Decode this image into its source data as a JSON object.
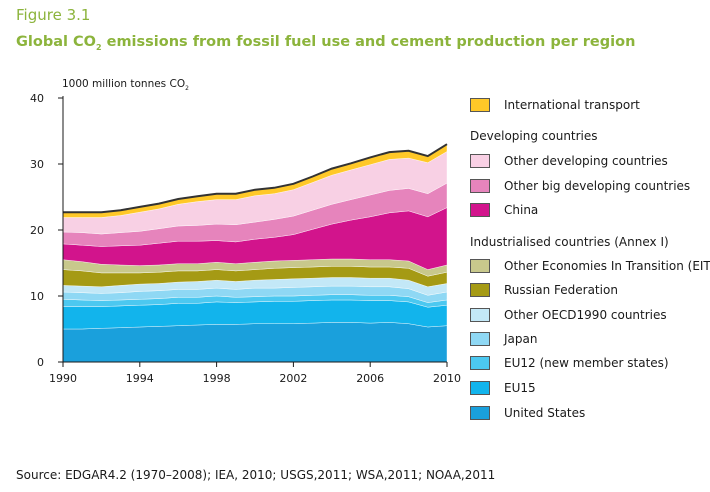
{
  "figure_label": "Figure 3.1",
  "title_pre": "Global CO",
  "title_sub": "2",
  "title_post": " emissions from fossil fuel use and cement production per region",
  "source": "Source: EDGAR4.2 (1970–2008); IEA, 2010; USGS,2011; WSA,2011; NOAA,2011",
  "chart_data": {
    "type": "area",
    "stacked": true,
    "ylabel_pre": "1000 million tonnes CO",
    "ylabel_sub": "2",
    "ylim": [
      0,
      40
    ],
    "yticks": [
      0,
      10,
      20,
      30,
      40
    ],
    "xlim": [
      1990,
      2010
    ],
    "xticks": [
      1990,
      1994,
      1998,
      2002,
      2006,
      2010
    ],
    "x": [
      1990,
      1991,
      1992,
      1993,
      1994,
      1995,
      1996,
      1997,
      1998,
      1999,
      2000,
      2001,
      2002,
      2003,
      2004,
      2005,
      2006,
      2007,
      2008,
      2009,
      2010
    ],
    "series": [
      {
        "name": "United States",
        "color": "#1aa0dc",
        "values": [
          5.0,
          5.0,
          5.1,
          5.2,
          5.3,
          5.4,
          5.5,
          5.6,
          5.7,
          5.7,
          5.8,
          5.8,
          5.8,
          5.9,
          6.0,
          6.0,
          5.9,
          6.0,
          5.8,
          5.3,
          5.5
        ]
      },
      {
        "name": "EU15",
        "color": "#12b4ec",
        "values": [
          3.4,
          3.4,
          3.3,
          3.3,
          3.3,
          3.3,
          3.4,
          3.3,
          3.4,
          3.3,
          3.3,
          3.4,
          3.4,
          3.4,
          3.4,
          3.4,
          3.4,
          3.3,
          3.3,
          3.0,
          3.1
        ]
      },
      {
        "name": "EU12 (new member states)",
        "color": "#4cc8f0",
        "values": [
          1.1,
          1.0,
          0.9,
          0.9,
          0.9,
          0.9,
          0.9,
          0.9,
          0.9,
          0.8,
          0.8,
          0.8,
          0.8,
          0.8,
          0.8,
          0.8,
          0.8,
          0.8,
          0.8,
          0.7,
          0.8
        ]
      },
      {
        "name": "Japan",
        "color": "#8fd8f4",
        "values": [
          1.1,
          1.1,
          1.1,
          1.1,
          1.2,
          1.2,
          1.2,
          1.2,
          1.2,
          1.2,
          1.3,
          1.2,
          1.3,
          1.3,
          1.3,
          1.3,
          1.3,
          1.3,
          1.2,
          1.1,
          1.2
        ]
      },
      {
        "name": "Other OECD1990 countries",
        "color": "#c3e8f7",
        "values": [
          1.0,
          1.0,
          1.0,
          1.1,
          1.1,
          1.1,
          1.1,
          1.2,
          1.2,
          1.2,
          1.2,
          1.3,
          1.3,
          1.3,
          1.3,
          1.3,
          1.3,
          1.3,
          1.3,
          1.3,
          1.3
        ]
      },
      {
        "name": "Russian Federation",
        "color": "#a59a14",
        "values": [
          2.4,
          2.3,
          2.1,
          1.9,
          1.7,
          1.7,
          1.7,
          1.6,
          1.6,
          1.6,
          1.6,
          1.7,
          1.7,
          1.7,
          1.7,
          1.7,
          1.7,
          1.7,
          1.8,
          1.6,
          1.7
        ]
      },
      {
        "name": "Other Economies In Transition (EIT)",
        "color": "#c8c88c",
        "values": [
          1.5,
          1.4,
          1.3,
          1.2,
          1.1,
          1.1,
          1.1,
          1.1,
          1.1,
          1.1,
          1.1,
          1.1,
          1.1,
          1.1,
          1.1,
          1.1,
          1.1,
          1.1,
          1.1,
          1.0,
          1.1
        ]
      },
      {
        "name": "China",
        "color": "#d2148c",
        "values": [
          2.4,
          2.5,
          2.7,
          2.9,
          3.1,
          3.3,
          3.4,
          3.4,
          3.3,
          3.3,
          3.5,
          3.6,
          3.9,
          4.6,
          5.3,
          5.9,
          6.5,
          7.1,
          7.6,
          8.0,
          8.7
        ]
      },
      {
        "name": "Other big developing countries",
        "color": "#e684bc",
        "values": [
          1.8,
          1.9,
          1.9,
          2.0,
          2.1,
          2.2,
          2.3,
          2.4,
          2.5,
          2.6,
          2.6,
          2.7,
          2.8,
          2.9,
          3.0,
          3.1,
          3.3,
          3.4,
          3.4,
          3.5,
          3.7
        ]
      },
      {
        "name": "Other developing countries",
        "color": "#f8d0e4",
        "values": [
          2.2,
          2.3,
          2.5,
          2.6,
          2.9,
          3.0,
          3.3,
          3.6,
          3.7,
          3.8,
          4.0,
          3.9,
          4.0,
          4.2,
          4.4,
          4.5,
          4.6,
          4.7,
          4.6,
          4.7,
          4.8
        ]
      },
      {
        "name": "International transport",
        "color": "#ffc828",
        "values": [
          0.8,
          0.8,
          0.8,
          0.8,
          0.8,
          0.8,
          0.8,
          0.8,
          0.9,
          0.9,
          0.9,
          0.9,
          0.9,
          0.9,
          1.0,
          1.0,
          1.1,
          1.1,
          1.1,
          1.0,
          1.1
        ]
      }
    ]
  },
  "legend": {
    "international_transport": "International transport",
    "developing_heading": "Developing countries",
    "other_developing": "Other developing countries",
    "other_big_developing": "Other big developing countries",
    "china": "China",
    "industrialised_heading": "Industrialised countries (Annex I)",
    "other_eit": "Other Economies In Transition (EIT)",
    "russia": "Russian Federation",
    "other_oecd": "Other OECD1990 countries",
    "japan": "Japan",
    "eu12": "EU12 (new member states)",
    "eu15": "EU15",
    "united_states": "United States"
  }
}
